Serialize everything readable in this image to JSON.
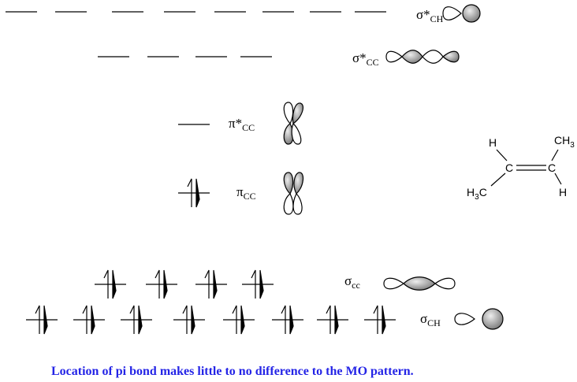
{
  "levels": {
    "sigma_star_ch": {
      "symbol": "σ*",
      "sub": "CH"
    },
    "sigma_star_cc": {
      "symbol": "σ*",
      "sub": "CC"
    },
    "pi_star_cc": {
      "symbol": "π*",
      "sub": "CC"
    },
    "pi_cc": {
      "symbol": "π",
      "sub": "CC"
    },
    "sigma_cc": {
      "symbol": "σ",
      "sub": "cc"
    },
    "sigma_ch": {
      "symbol": "σ",
      "sub": "CH"
    }
  },
  "molecule": {
    "h_top_left": "H",
    "ch3": "CH",
    "ch3_sub": "3",
    "c_left": "C",
    "c_right": "C",
    "h3c": "H",
    "h3c_sub": "3",
    "h3c_c": "C",
    "h_bottom_right": "H"
  },
  "caption": "Location of pi bond makes little to no difference to the MO pattern."
}
